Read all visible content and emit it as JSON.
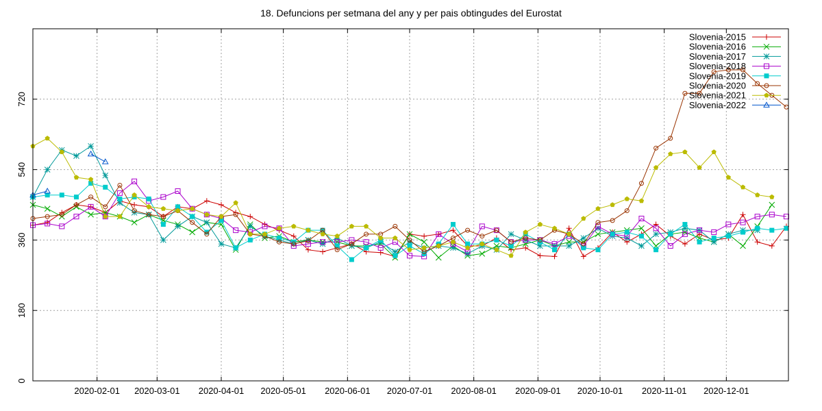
{
  "chart_data": {
    "type": "line",
    "title": "18. Defuncions per setmana del any y per pais obtingudes del Eurostat",
    "xlabel": "",
    "ylabel": "",
    "xlim": [
      "2020-01-01",
      "2020-12-31"
    ],
    "ylim": [
      0,
      900
    ],
    "yticks": [
      0,
      180,
      360,
      540,
      720
    ],
    "xticks": [
      "2020-02-01",
      "2020-03-01",
      "2020-04-01",
      "2020-05-01",
      "2020-06-01",
      "2020-07-01",
      "2020-08-01",
      "2020-09-01",
      "2020-10-01",
      "2020-11-01",
      "2020-12-01"
    ],
    "grid": true,
    "legend_position": "top-right",
    "x_dates": [
      "2020-01-01",
      "2020-01-08",
      "2020-01-15",
      "2020-01-22",
      "2020-01-29",
      "2020-02-05",
      "2020-02-12",
      "2020-02-19",
      "2020-02-26",
      "2020-03-04",
      "2020-03-11",
      "2020-03-18",
      "2020-03-25",
      "2020-04-01",
      "2020-04-08",
      "2020-04-15",
      "2020-04-22",
      "2020-04-29",
      "2020-05-06",
      "2020-05-13",
      "2020-05-20",
      "2020-05-27",
      "2020-06-03",
      "2020-06-10",
      "2020-06-17",
      "2020-06-24",
      "2020-07-01",
      "2020-07-08",
      "2020-07-15",
      "2020-07-22",
      "2020-07-29",
      "2020-08-05",
      "2020-08-12",
      "2020-08-19",
      "2020-08-26",
      "2020-09-02",
      "2020-09-09",
      "2020-09-16",
      "2020-09-23",
      "2020-09-30",
      "2020-10-07",
      "2020-10-14",
      "2020-10-21",
      "2020-10-28",
      "2020-11-04",
      "2020-11-11",
      "2020-11-18",
      "2020-11-25",
      "2020-12-02",
      "2020-12-09",
      "2020-12-16",
      "2020-12-23",
      "2020-12-30"
    ],
    "series": [
      {
        "name": "Slovenia-2015",
        "color": "#cc0000",
        "marker": "plus",
        "values": [
          398,
          405,
          430,
          450,
          445,
          430,
          460,
          450,
          445,
          420,
          445,
          440,
          460,
          450,
          430,
          420,
          400,
          385,
          370,
          335,
          330,
          340,
          350,
          330,
          328,
          318,
          375,
          370,
          375,
          385,
          345,
          345,
          365,
          335,
          340,
          320,
          318,
          390,
          318,
          340,
          380,
          355,
          375,
          400,
          370,
          350,
          375,
          360,
          365,
          425,
          355,
          345,
          395
        ]
      },
      {
        "name": "Slovenia-2016",
        "color": "#00aa00",
        "marker": "x",
        "values": [
          450,
          440,
          420,
          445,
          425,
          430,
          420,
          405,
          425,
          410,
          400,
          380,
          405,
          400,
          335,
          400,
          365,
          370,
          355,
          360,
          355,
          355,
          345,
          345,
          350,
          315,
          375,
          355,
          315,
          345,
          320,
          325,
          345,
          340,
          350,
          360,
          345,
          355,
          355,
          375,
          380,
          385,
          390,
          345,
          375,
          380,
          365,
          355,
          375,
          345,
          395,
          450,
          0
        ]
      },
      {
        "name": "Slovenia-2017",
        "color": "#009999",
        "marker": "star",
        "values": [
          470,
          540,
          590,
          575,
          600,
          525,
          455,
          430,
          425,
          360,
          395,
          420,
          405,
          350,
          340,
          395,
          370,
          360,
          350,
          360,
          350,
          365,
          345,
          340,
          355,
          330,
          355,
          340,
          345,
          340,
          325,
          345,
          335,
          375,
          360,
          345,
          345,
          345,
          365,
          390,
          370,
          365,
          345,
          375,
          380,
          390,
          385,
          355,
          375,
          385,
          385,
          0,
          0
        ]
      },
      {
        "name": "Slovenia-2018",
        "color": "#aa00cc",
        "marker": "square",
        "values": [
          398,
          402,
          395,
          420,
          445,
          420,
          480,
          510,
          460,
          470,
          485,
          440,
          425,
          415,
          385,
          380,
          395,
          390,
          345,
          350,
          355,
          355,
          360,
          355,
          340,
          355,
          320,
          318,
          375,
          350,
          330,
          395,
          385,
          355,
          360,
          360,
          350,
          370,
          345,
          395,
          375,
          370,
          415,
          390,
          345,
          375,
          385,
          380,
          400,
          405,
          420,
          425,
          420
        ]
      },
      {
        "name": "Slovenia-2019",
        "color": "#00cccc",
        "marker": "fsquare",
        "values": [
          470,
          475,
          475,
          470,
          505,
          495,
          465,
          470,
          465,
          400,
          445,
          420,
          380,
          410,
          340,
          360,
          375,
          365,
          355,
          385,
          385,
          345,
          310,
          340,
          360,
          320,
          345,
          325,
          350,
          400,
          350,
          350,
          360,
          345,
          375,
          355,
          335,
          375,
          340,
          335,
          375,
          380,
          370,
          335,
          375,
          400,
          355,
          365,
          370,
          380,
          390,
          385,
          390
        ]
      },
      {
        "name": "Slovenia-2020",
        "color": "#993300",
        "marker": "circle",
        "values": [
          415,
          420,
          425,
          450,
          470,
          445,
          500,
          435,
          425,
          420,
          435,
          405,
          375,
          420,
          425,
          375,
          370,
          355,
          350,
          358,
          385,
          335,
          350,
          375,
          375,
          395,
          360,
          330,
          345,
          365,
          385,
          370,
          385,
          355,
          365,
          360,
          385,
          375,
          350,
          405,
          410,
          435,
          505,
          595,
          620,
          735,
          735,
          790,
          795,
          795,
          760,
          730,
          700
        ]
      },
      {
        "name": "Slovenia-2021",
        "color": "#bbbb00",
        "marker": "pentagon",
        "values": [
          600,
          620,
          585,
          520,
          515,
          420,
          420,
          475,
          445,
          440,
          435,
          440,
          425,
          420,
          455,
          375,
          375,
          390,
          395,
          385,
          375,
          370,
          395,
          395,
          365,
          365,
          335,
          340,
          345,
          355,
          340,
          350,
          335,
          320,
          380,
          400,
          390,
          375,
          415,
          440,
          450,
          465,
          460,
          545,
          580,
          585,
          545,
          585,
          520,
          495,
          475,
          470,
          0
        ]
      },
      {
        "name": "Slovenia-2022",
        "color": "#0055cc",
        "marker": "triangle",
        "values": [
          475,
          485,
          0,
          0,
          580,
          560,
          0,
          0,
          0,
          0,
          0,
          0,
          0,
          0,
          0,
          0,
          0,
          0,
          0,
          0,
          0,
          0,
          0,
          0,
          0,
          0,
          0,
          0,
          0,
          0,
          0,
          0,
          0,
          0,
          0,
          0,
          0,
          0,
          0,
          0,
          0,
          0,
          0,
          0,
          0,
          0,
          0,
          0,
          0,
          0,
          0,
          0,
          0
        ]
      }
    ]
  }
}
